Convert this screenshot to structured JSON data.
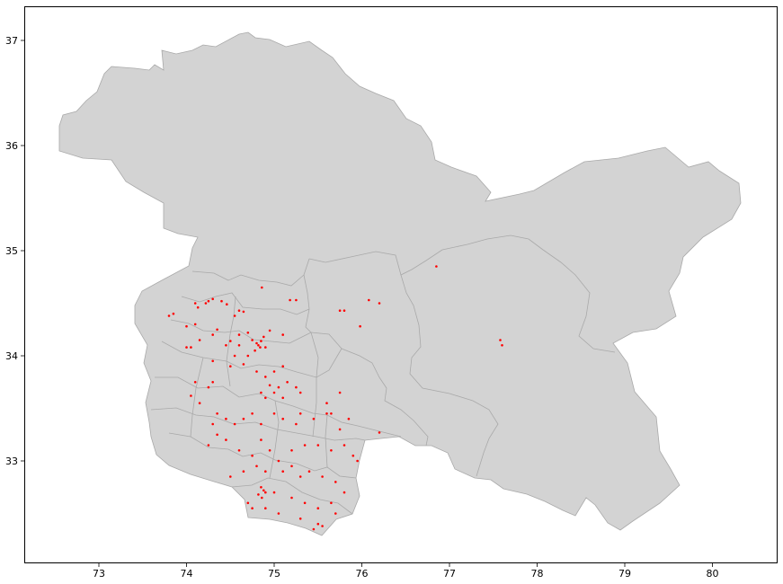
{
  "chart_data": {
    "type": "scatter",
    "title": "",
    "xlabel": "",
    "ylabel": "",
    "xlim": [
      72.15,
      80.75
    ],
    "ylim": [
      32.05,
      37.35
    ],
    "x_ticks": [
      73,
      74,
      75,
      76,
      77,
      78,
      79,
      80
    ],
    "y_ticks": [
      33,
      34,
      35,
      36,
      37
    ],
    "x_tick_labels": [
      "73",
      "74",
      "75",
      "76",
      "77",
      "78",
      "79",
      "80"
    ],
    "y_tick_labels": [
      "33",
      "34",
      "35",
      "36",
      "37"
    ],
    "grid": false,
    "colors": {
      "background_map": "#d3d3d3",
      "map_edge": "#a9a9a9",
      "points": "#ff0000"
    },
    "series": [
      {
        "values": [
          [
            74.25,
            34.52
          ],
          [
            74.3,
            34.54
          ],
          [
            74.22,
            34.5
          ],
          [
            74.1,
            34.5
          ],
          [
            74.13,
            34.46
          ],
          [
            74.4,
            34.52
          ],
          [
            74.46,
            34.49
          ],
          [
            74.6,
            34.43
          ],
          [
            74.65,
            34.42
          ],
          [
            74.55,
            34.38
          ],
          [
            74.86,
            34.65
          ],
          [
            75.18,
            34.53
          ],
          [
            75.25,
            34.53
          ],
          [
            73.85,
            34.4
          ],
          [
            73.8,
            34.38
          ],
          [
            74.0,
            34.28
          ],
          [
            74.1,
            34.3
          ],
          [
            74.15,
            34.15
          ],
          [
            74.3,
            34.2
          ],
          [
            74.35,
            34.25
          ],
          [
            74.45,
            34.1
          ],
          [
            74.5,
            34.14
          ],
          [
            74.6,
            34.2
          ],
          [
            74.7,
            34.22
          ],
          [
            74.75,
            34.15
          ],
          [
            74.8,
            34.12
          ],
          [
            74.82,
            34.1
          ],
          [
            74.84,
            34.08
          ],
          [
            74.78,
            34.05
          ],
          [
            74.85,
            34.14
          ],
          [
            74.88,
            34.18
          ],
          [
            74.9,
            34.08
          ],
          [
            74.7,
            34.0
          ],
          [
            74.55,
            34.0
          ],
          [
            74.6,
            34.1
          ],
          [
            74.95,
            34.24
          ],
          [
            75.1,
            34.2
          ],
          [
            74.05,
            34.08
          ],
          [
            74.0,
            34.08
          ],
          [
            74.3,
            33.95
          ],
          [
            74.5,
            33.9
          ],
          [
            74.65,
            33.92
          ],
          [
            74.8,
            33.85
          ],
          [
            74.9,
            33.8
          ],
          [
            75.0,
            33.85
          ],
          [
            75.1,
            33.9
          ],
          [
            74.95,
            33.72
          ],
          [
            75.05,
            33.7
          ],
          [
            75.15,
            33.75
          ],
          [
            75.25,
            33.7
          ],
          [
            75.3,
            33.65
          ],
          [
            74.85,
            33.65
          ],
          [
            74.9,
            33.6
          ],
          [
            75.0,
            33.65
          ],
          [
            75.1,
            33.6
          ],
          [
            74.25,
            33.7
          ],
          [
            74.3,
            33.75
          ],
          [
            74.1,
            33.75
          ],
          [
            74.05,
            33.62
          ],
          [
            74.15,
            33.55
          ],
          [
            74.35,
            33.45
          ],
          [
            74.3,
            33.35
          ],
          [
            74.45,
            33.4
          ],
          [
            74.55,
            33.35
          ],
          [
            74.65,
            33.4
          ],
          [
            74.75,
            33.45
          ],
          [
            74.85,
            33.35
          ],
          [
            75.0,
            33.45
          ],
          [
            75.1,
            33.4
          ],
          [
            75.25,
            33.35
          ],
          [
            75.3,
            33.45
          ],
          [
            75.45,
            33.4
          ],
          [
            75.6,
            33.45
          ],
          [
            75.75,
            33.3
          ],
          [
            75.85,
            33.4
          ],
          [
            74.25,
            33.15
          ],
          [
            74.35,
            33.25
          ],
          [
            74.45,
            33.2
          ],
          [
            74.6,
            33.1
          ],
          [
            74.75,
            33.05
          ],
          [
            74.85,
            33.2
          ],
          [
            74.95,
            33.1
          ],
          [
            75.05,
            33.0
          ],
          [
            75.2,
            33.1
          ],
          [
            75.35,
            33.15
          ],
          [
            75.5,
            33.15
          ],
          [
            75.65,
            33.1
          ],
          [
            75.8,
            33.15
          ],
          [
            75.9,
            33.05
          ],
          [
            75.95,
            33.0
          ],
          [
            76.2,
            33.27
          ],
          [
            74.5,
            32.85
          ],
          [
            74.65,
            32.9
          ],
          [
            74.8,
            32.95
          ],
          [
            74.9,
            32.9
          ],
          [
            75.1,
            32.9
          ],
          [
            75.2,
            32.95
          ],
          [
            75.3,
            32.85
          ],
          [
            75.4,
            32.9
          ],
          [
            75.55,
            32.85
          ],
          [
            75.7,
            32.8
          ],
          [
            74.85,
            32.75
          ],
          [
            74.88,
            32.72
          ],
          [
            74.9,
            32.7
          ],
          [
            74.82,
            32.68
          ],
          [
            74.86,
            32.65
          ],
          [
            75.0,
            32.7
          ],
          [
            75.2,
            32.65
          ],
          [
            75.35,
            32.6
          ],
          [
            75.5,
            32.55
          ],
          [
            75.65,
            32.6
          ],
          [
            75.8,
            32.7
          ],
          [
            74.7,
            32.6
          ],
          [
            74.75,
            32.55
          ],
          [
            74.9,
            32.55
          ],
          [
            75.05,
            32.5
          ],
          [
            75.3,
            32.45
          ],
          [
            75.5,
            32.4
          ],
          [
            75.55,
            32.38
          ],
          [
            75.45,
            32.35
          ],
          [
            75.7,
            32.5
          ],
          [
            75.75,
            33.65
          ],
          [
            75.6,
            33.55
          ],
          [
            75.65,
            33.45
          ],
          [
            76.08,
            34.53
          ],
          [
            76.2,
            34.5
          ],
          [
            75.75,
            34.43
          ],
          [
            75.8,
            34.43
          ],
          [
            75.98,
            34.28
          ],
          [
            76.85,
            34.85
          ],
          [
            77.58,
            34.15
          ],
          [
            77.6,
            34.1
          ]
        ]
      }
    ]
  }
}
